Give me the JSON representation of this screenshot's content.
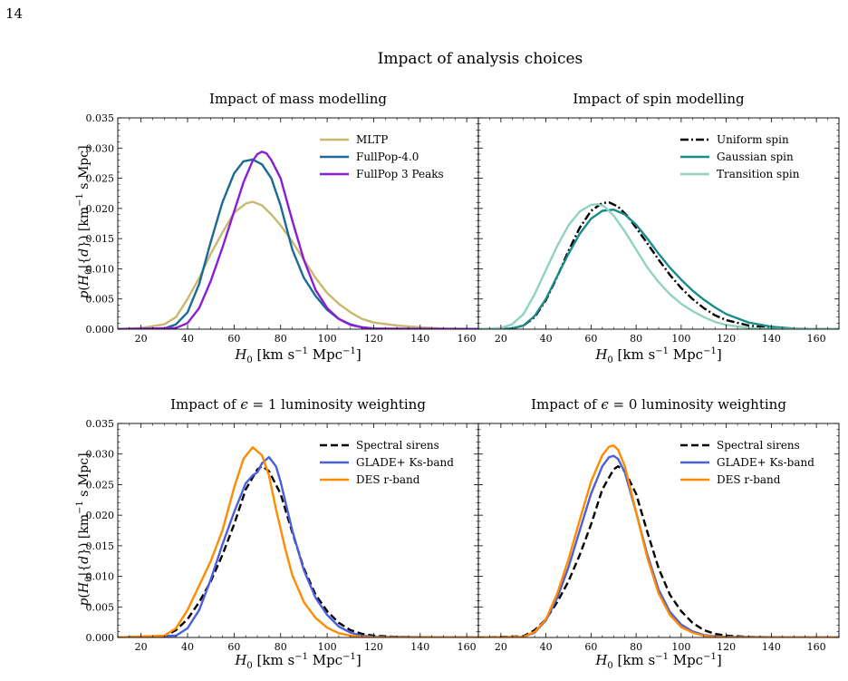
{
  "page_number": "14",
  "figure_title": "Impact of analysis choices",
  "chart_data": [
    {
      "type": "line",
      "title": "Impact of mass modelling",
      "xlabel": "H0 [km s^-1 Mpc^-1]",
      "ylabel": "p(H0|{d}) [km^-1 s Mpc]",
      "xlim": [
        10,
        165
      ],
      "ylim": [
        0,
        0.035
      ],
      "xticks": [
        20,
        40,
        60,
        80,
        100,
        120,
        140,
        160
      ],
      "yticks": [
        "0.000",
        "0.005",
        "0.010",
        "0.015",
        "0.020",
        "0.025",
        "0.030",
        "0.035"
      ],
      "legend_position": "top-right",
      "series": [
        {
          "name": "MLTP",
          "color": "#c8b870",
          "dash": "solid",
          "x": [
            10,
            20,
            30,
            35,
            40,
            45,
            50,
            55,
            60,
            65,
            68,
            72,
            76,
            80,
            85,
            90,
            95,
            100,
            105,
            110,
            115,
            120,
            130,
            140,
            150,
            160,
            165
          ],
          "y": [
            0,
            0.0002,
            0.0008,
            0.002,
            0.005,
            0.0085,
            0.0125,
            0.016,
            0.0193,
            0.0208,
            0.0211,
            0.0205,
            0.019,
            0.0172,
            0.0145,
            0.0115,
            0.0085,
            0.006,
            0.0042,
            0.0028,
            0.0017,
            0.0011,
            0.0006,
            0.0003,
            0.0001,
            5e-05,
            0
          ]
        },
        {
          "name": "FullPop-4.0",
          "color": "#1a6a96",
          "dash": "solid",
          "x": [
            10,
            30,
            35,
            40,
            45,
            50,
            55,
            60,
            64,
            68,
            72,
            76,
            80,
            85,
            90,
            95,
            100,
            105,
            110,
            115,
            120,
            130,
            165
          ],
          "y": [
            0,
            0.0001,
            0.0008,
            0.0028,
            0.0075,
            0.0145,
            0.021,
            0.0258,
            0.0278,
            0.0281,
            0.0273,
            0.025,
            0.0205,
            0.0132,
            0.0085,
            0.0055,
            0.0032,
            0.0017,
            0.0008,
            0.0003,
            0.0001,
            0,
            0
          ]
        },
        {
          "name": "FullPop 3 Peaks",
          "color": "#8a1ed2",
          "dash": "solid",
          "x": [
            10,
            35,
            40,
            45,
            50,
            55,
            60,
            64,
            68,
            70,
            72,
            74,
            76,
            80,
            85,
            90,
            95,
            100,
            105,
            110,
            115,
            120,
            165
          ],
          "y": [
            0,
            0.0002,
            0.001,
            0.0035,
            0.008,
            0.0135,
            0.0195,
            0.0243,
            0.0279,
            0.029,
            0.0294,
            0.0291,
            0.028,
            0.025,
            0.018,
            0.0115,
            0.0065,
            0.0035,
            0.0017,
            0.0007,
            0.0003,
            0.0001,
            0
          ]
        }
      ]
    },
    {
      "type": "line",
      "title": "Impact of spin modelling",
      "xlabel": "H0 [km s^-1 Mpc^-1]",
      "ylabel": "",
      "xlim": [
        10,
        170
      ],
      "ylim": [
        0,
        0.035
      ],
      "xticks": [
        20,
        40,
        60,
        80,
        100,
        120,
        140,
        160
      ],
      "legend_position": "top-right",
      "series": [
        {
          "name": "Uniform spin",
          "color": "#000000",
          "dash": "dashdot",
          "x": [
            10,
            25,
            30,
            35,
            40,
            45,
            50,
            55,
            60,
            65,
            68,
            72,
            76,
            80,
            85,
            90,
            95,
            100,
            105,
            110,
            115,
            120,
            130,
            140,
            150,
            170
          ],
          "y": [
            0,
            0.0001,
            0.0006,
            0.002,
            0.0048,
            0.0087,
            0.013,
            0.0168,
            0.0196,
            0.0209,
            0.021,
            0.0203,
            0.0188,
            0.0168,
            0.0142,
            0.0115,
            0.009,
            0.0068,
            0.005,
            0.0035,
            0.0023,
            0.0015,
            0.0006,
            0.0002,
            5e-05,
            0
          ]
        },
        {
          "name": "Gaussian spin",
          "color": "#1a8a8a",
          "dash": "solid",
          "x": [
            10,
            25,
            30,
            35,
            40,
            45,
            50,
            55,
            60,
            65,
            70,
            75,
            80,
            85,
            90,
            95,
            100,
            105,
            110,
            115,
            120,
            130,
            140,
            150,
            160,
            170
          ],
          "y": [
            0,
            0.0001,
            0.0006,
            0.0022,
            0.005,
            0.0088,
            0.0125,
            0.0158,
            0.0183,
            0.0196,
            0.0198,
            0.019,
            0.0173,
            0.015,
            0.0125,
            0.0102,
            0.0082,
            0.0064,
            0.0049,
            0.0036,
            0.0025,
            0.0011,
            0.0004,
            0.0001,
            2e-05,
            0
          ]
        },
        {
          "name": "Transition spin",
          "color": "#8fd3c0",
          "dash": "solid",
          "x": [
            10,
            20,
            25,
            30,
            35,
            40,
            45,
            50,
            55,
            60,
            63,
            66,
            70,
            75,
            80,
            85,
            90,
            95,
            100,
            105,
            110,
            115,
            120,
            130,
            140,
            170
          ],
          "y": [
            0,
            0.0002,
            0.0008,
            0.0025,
            0.0058,
            0.0098,
            0.0138,
            0.0172,
            0.0195,
            0.0206,
            0.0207,
            0.0203,
            0.0188,
            0.0162,
            0.0132,
            0.0102,
            0.0078,
            0.0058,
            0.0042,
            0.003,
            0.002,
            0.0012,
            0.0007,
            0.0002,
            5e-05,
            0
          ]
        }
      ]
    },
    {
      "type": "line",
      "title": "Impact of ε = 1 luminosity weighting",
      "xlabel": "H0 [km s^-1 Mpc^-1]",
      "ylabel": "p(H0|{d}) [km^-1 s Mpc]",
      "xlim": [
        10,
        165
      ],
      "ylim": [
        0,
        0.035
      ],
      "xticks": [
        20,
        40,
        60,
        80,
        100,
        120,
        140,
        160
      ],
      "yticks": [
        "0.000",
        "0.005",
        "0.010",
        "0.015",
        "0.020",
        "0.025",
        "0.030",
        "0.035"
      ],
      "legend_position": "top-right",
      "series": [
        {
          "name": "Spectral sirens",
          "color": "#000000",
          "dash": "dashed",
          "x": [
            10,
            30,
            35,
            40,
            45,
            50,
            55,
            60,
            65,
            70,
            72,
            75,
            80,
            85,
            90,
            95,
            100,
            105,
            110,
            115,
            120,
            130,
            140,
            165
          ],
          "y": [
            0,
            0.0002,
            0.0012,
            0.003,
            0.0058,
            0.0092,
            0.0135,
            0.0185,
            0.0242,
            0.0275,
            0.028,
            0.0272,
            0.0235,
            0.0172,
            0.0113,
            0.007,
            0.0043,
            0.0024,
            0.0012,
            0.0006,
            0.0003,
            0.0001,
            2e-05,
            0
          ]
        },
        {
          "name": "GLADE+ Ks-band",
          "color": "#4a5fd8",
          "dash": "solid",
          "x": [
            10,
            35,
            40,
            45,
            50,
            55,
            60,
            65,
            68,
            70,
            72,
            75,
            78,
            80,
            85,
            90,
            95,
            100,
            105,
            110,
            115,
            120,
            165
          ],
          "y": [
            0,
            0.0003,
            0.0015,
            0.0045,
            0.0095,
            0.0152,
            0.0205,
            0.0252,
            0.0265,
            0.027,
            0.0285,
            0.0295,
            0.028,
            0.0255,
            0.0175,
            0.011,
            0.0065,
            0.0037,
            0.0018,
            0.0008,
            0.0003,
            0.0001,
            0
          ]
        },
        {
          "name": "DES r-band",
          "color": "#ff8c00",
          "dash": "solid",
          "x": [
            10,
            30,
            35,
            40,
            45,
            50,
            55,
            60,
            64,
            68,
            72,
            75,
            78,
            82,
            85,
            90,
            95,
            100,
            105,
            110,
            115,
            120,
            165
          ],
          "y": [
            0,
            0.0003,
            0.0015,
            0.0045,
            0.0085,
            0.0125,
            0.0175,
            0.0245,
            0.0292,
            0.0311,
            0.0298,
            0.0265,
            0.021,
            0.0145,
            0.0102,
            0.0058,
            0.0032,
            0.0016,
            0.0007,
            0.0003,
            0.0001,
            4e-05,
            0
          ]
        }
      ]
    },
    {
      "type": "line",
      "title": "Impact of ε = 0 luminosity weighting",
      "xlabel": "H0 [km s^-1 Mpc^-1]",
      "ylabel": "",
      "xlim": [
        10,
        170
      ],
      "ylim": [
        0,
        0.035
      ],
      "xticks": [
        20,
        40,
        60,
        80,
        100,
        120,
        140,
        160
      ],
      "legend_position": "top-right",
      "series": [
        {
          "name": "Spectral sirens",
          "color": "#000000",
          "dash": "dashed",
          "x": [
            10,
            30,
            35,
            40,
            45,
            50,
            55,
            60,
            65,
            70,
            72,
            75,
            80,
            85,
            90,
            95,
            100,
            105,
            110,
            115,
            120,
            130,
            140,
            170
          ],
          "y": [
            0,
            0.0002,
            0.0012,
            0.003,
            0.0058,
            0.0092,
            0.0135,
            0.0185,
            0.0242,
            0.0275,
            0.028,
            0.0272,
            0.0235,
            0.0172,
            0.0113,
            0.007,
            0.0043,
            0.0024,
            0.0012,
            0.0006,
            0.0003,
            0.0001,
            2e-05,
            0
          ]
        },
        {
          "name": "GLADE+ Ks-band",
          "color": "#4a5fd8",
          "dash": "solid",
          "x": [
            10,
            30,
            35,
            40,
            45,
            50,
            55,
            60,
            65,
            68,
            70,
            72,
            75,
            80,
            85,
            90,
            95,
            100,
            105,
            110,
            115,
            120,
            170
          ],
          "y": [
            0,
            0.0001,
            0.0008,
            0.0028,
            0.0065,
            0.0115,
            0.0175,
            0.0235,
            0.028,
            0.0295,
            0.0297,
            0.0292,
            0.027,
            0.0205,
            0.0135,
            0.0078,
            0.0042,
            0.0021,
            0.001,
            0.0004,
            0.0002,
            0.0001,
            0
          ]
        },
        {
          "name": "DES r-band",
          "color": "#ff8c00",
          "dash": "solid",
          "x": [
            10,
            30,
            35,
            40,
            45,
            50,
            55,
            60,
            65,
            68,
            70,
            72,
            75,
            80,
            85,
            90,
            95,
            100,
            105,
            110,
            115,
            120,
            170
          ],
          "y": [
            0,
            0.0001,
            0.0009,
            0.003,
            0.0072,
            0.0128,
            0.0192,
            0.0255,
            0.0298,
            0.0312,
            0.0314,
            0.0307,
            0.028,
            0.0205,
            0.013,
            0.0072,
            0.0037,
            0.0017,
            0.0008,
            0.0003,
            0.0001,
            4e-05,
            0
          ]
        }
      ]
    }
  ]
}
